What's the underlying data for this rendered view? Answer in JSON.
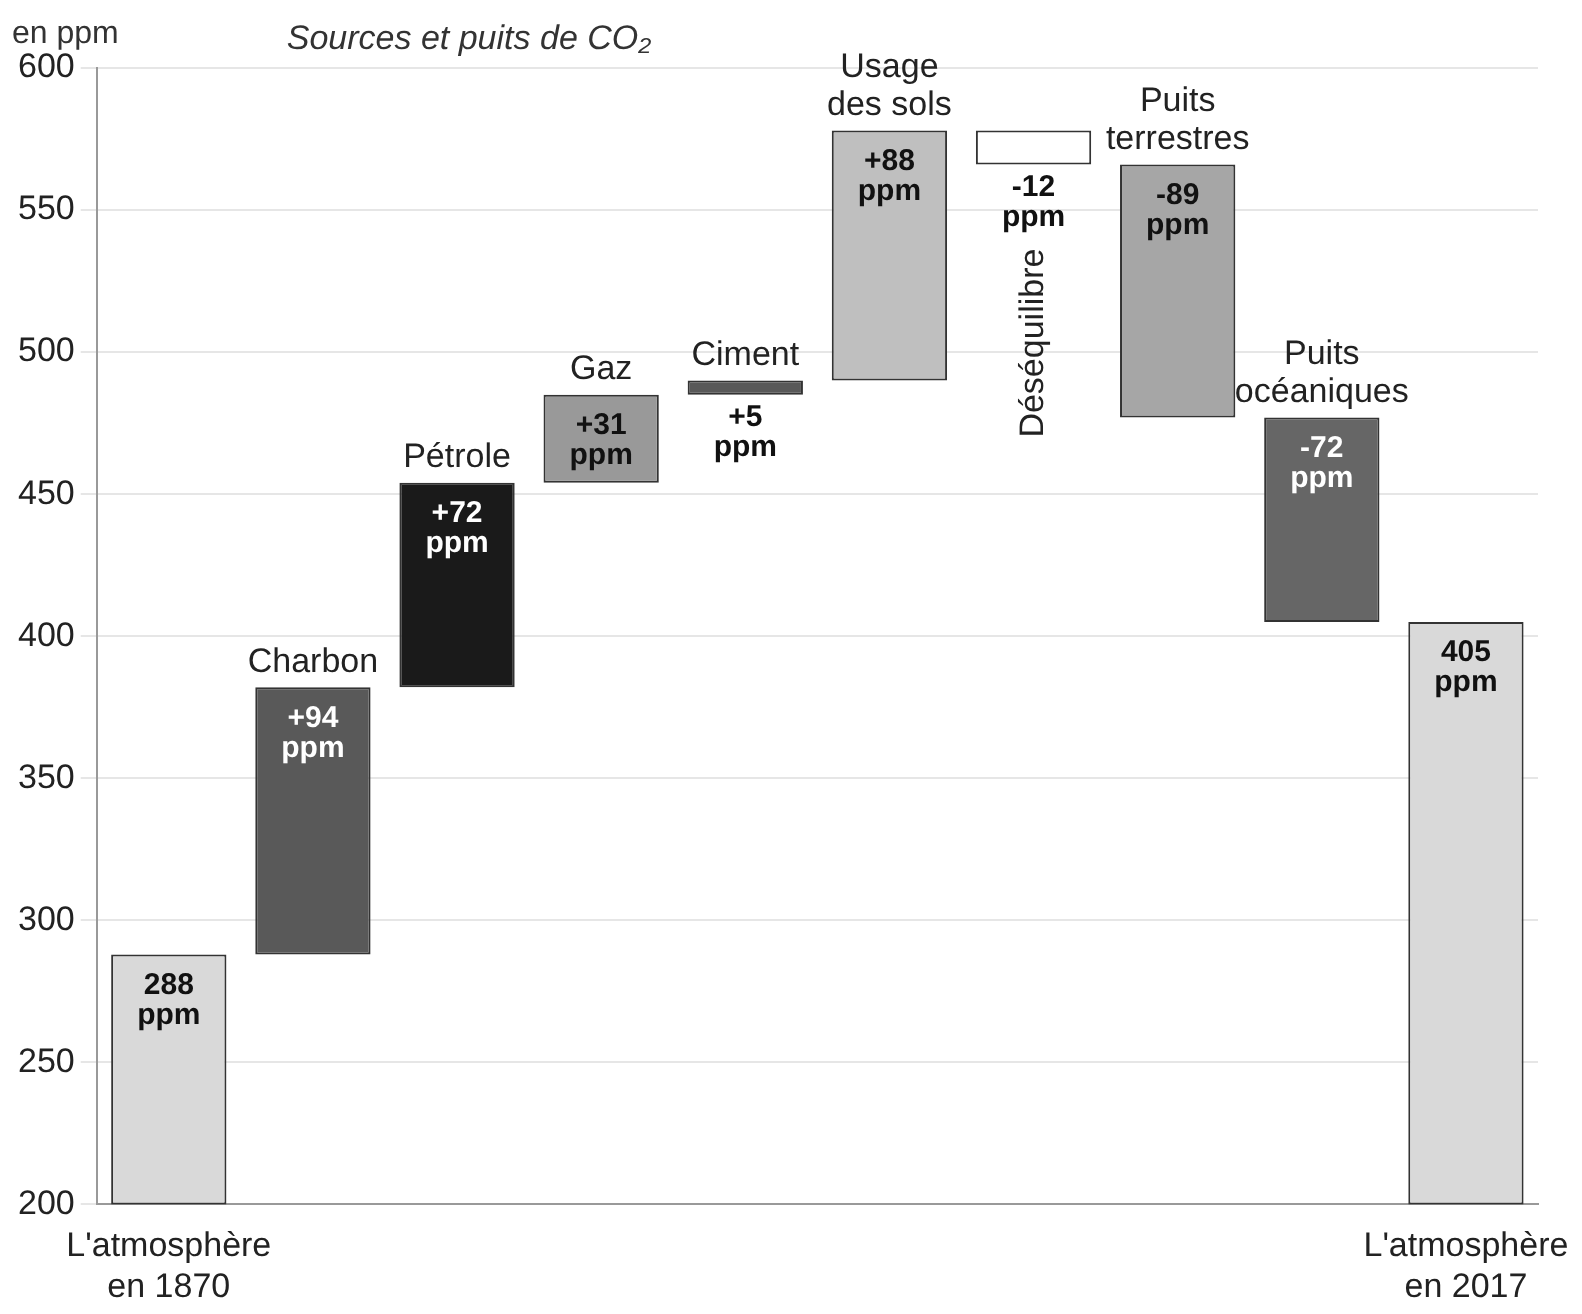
{
  "chart_data": {
    "type": "bar",
    "title": "Sources et puits de CO₂",
    "ylabel": "en ppm",
    "categories": [
      "L'atmosphère en 1870",
      "Charbon",
      "Pétrole",
      "Gaz",
      "Ciment",
      "Usage des sols",
      "Déséquilibre",
      "Puits terrestres",
      "Puits océaniques",
      "L'atmosphère en 2017"
    ],
    "base": [
      200,
      288,
      382,
      454,
      485,
      490,
      578,
      566,
      477,
      200
    ],
    "values": [
      88,
      94,
      72,
      31,
      5,
      88,
      -12,
      -89,
      -72,
      205
    ],
    "colors": [
      "#d9d9d9",
      "#595959",
      "#1a1a1a",
      "#999999",
      "#595959",
      "#bfbfbf",
      "#ffffff",
      "#a6a6a6",
      "#666666",
      "#d9d9d9"
    ],
    "value_labels": [
      "288 ppm",
      "+94 ppm",
      "+72 ppm",
      "+31 ppm",
      "+5 ppm",
      "+88 ppm",
      "-12 ppm",
      "-89 ppm",
      "-72 ppm",
      "405 ppm"
    ],
    "ylim": [
      200,
      600
    ],
    "yticks": [
      200,
      250,
      300,
      350,
      400,
      450,
      500,
      550,
      600
    ],
    "grid": "y",
    "legend": false
  }
}
